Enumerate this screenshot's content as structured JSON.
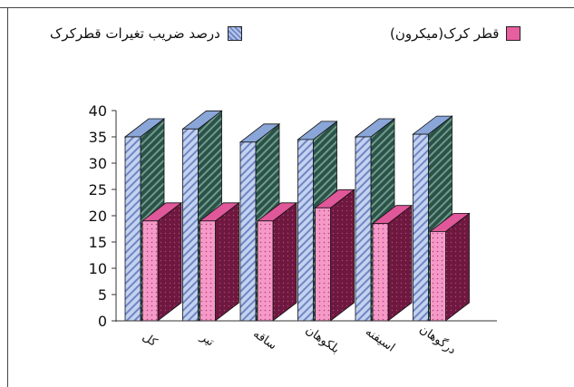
{
  "chart_data": {
    "type": "bar",
    "style": "3d-clustered-column",
    "categories": [
      "کل",
      "تیر",
      "ساقه",
      "بلکوهان",
      "اسیفنه",
      "درگوهان"
    ],
    "series": [
      {
        "name": "درصد ضریب تغیرات قطرکرک",
        "values": [
          35,
          36.5,
          34,
          34.5,
          35,
          35.5
        ],
        "color_front": "#b8c8ec",
        "color_side": "#2e5a4e",
        "color_top": "#8aa6d8",
        "pattern": "diagonal-hatch"
      },
      {
        "name": "قطر کرک(میکرون)",
        "values": [
          19,
          19,
          19,
          21.5,
          18.5,
          17
        ],
        "color_front": "#f59ac8",
        "color_side": "#6e1840",
        "color_top": "#e0579a",
        "pattern": "dots"
      }
    ],
    "ylim": [
      0,
      40
    ],
    "yticks": [
      0,
      5,
      10,
      15,
      20,
      25,
      30,
      35,
      40
    ],
    "legend_position": "top",
    "grid": false
  }
}
